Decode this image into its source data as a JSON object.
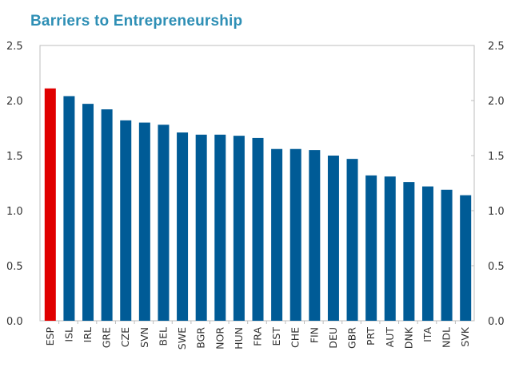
{
  "chart_data": {
    "type": "bar",
    "title": "Barriers to Entrepreneurship",
    "xlabel": "",
    "ylabel": "",
    "ylim": [
      0,
      2.5
    ],
    "yticks": [
      "0.0",
      "0.5",
      "1.0",
      "1.5",
      "2.0",
      "2.5"
    ],
    "secondary_yticks": [
      "0.0",
      "0.5",
      "1.0",
      "1.5",
      "2.0",
      "2.5"
    ],
    "grid": false,
    "categories": [
      "ESP",
      "ISL",
      "IRL",
      "GRE",
      "CZE",
      "SVN",
      "BEL",
      "SWE",
      "BGR",
      "NOR",
      "HUN",
      "FRA",
      "EST",
      "CHE",
      "FIN",
      "DEU",
      "GBR",
      "PRT",
      "AUT",
      "DNK",
      "ITA",
      "NDL",
      "SVK"
    ],
    "values": [
      2.11,
      2.04,
      1.97,
      1.92,
      1.82,
      1.8,
      1.78,
      1.71,
      1.69,
      1.69,
      1.68,
      1.66,
      1.56,
      1.56,
      1.55,
      1.5,
      1.47,
      1.32,
      1.31,
      1.26,
      1.22,
      1.19,
      1.14
    ],
    "highlight": "ESP",
    "colors": {
      "highlight": "#E00000",
      "default": "#005B96",
      "title": "#2E8FB5"
    }
  }
}
